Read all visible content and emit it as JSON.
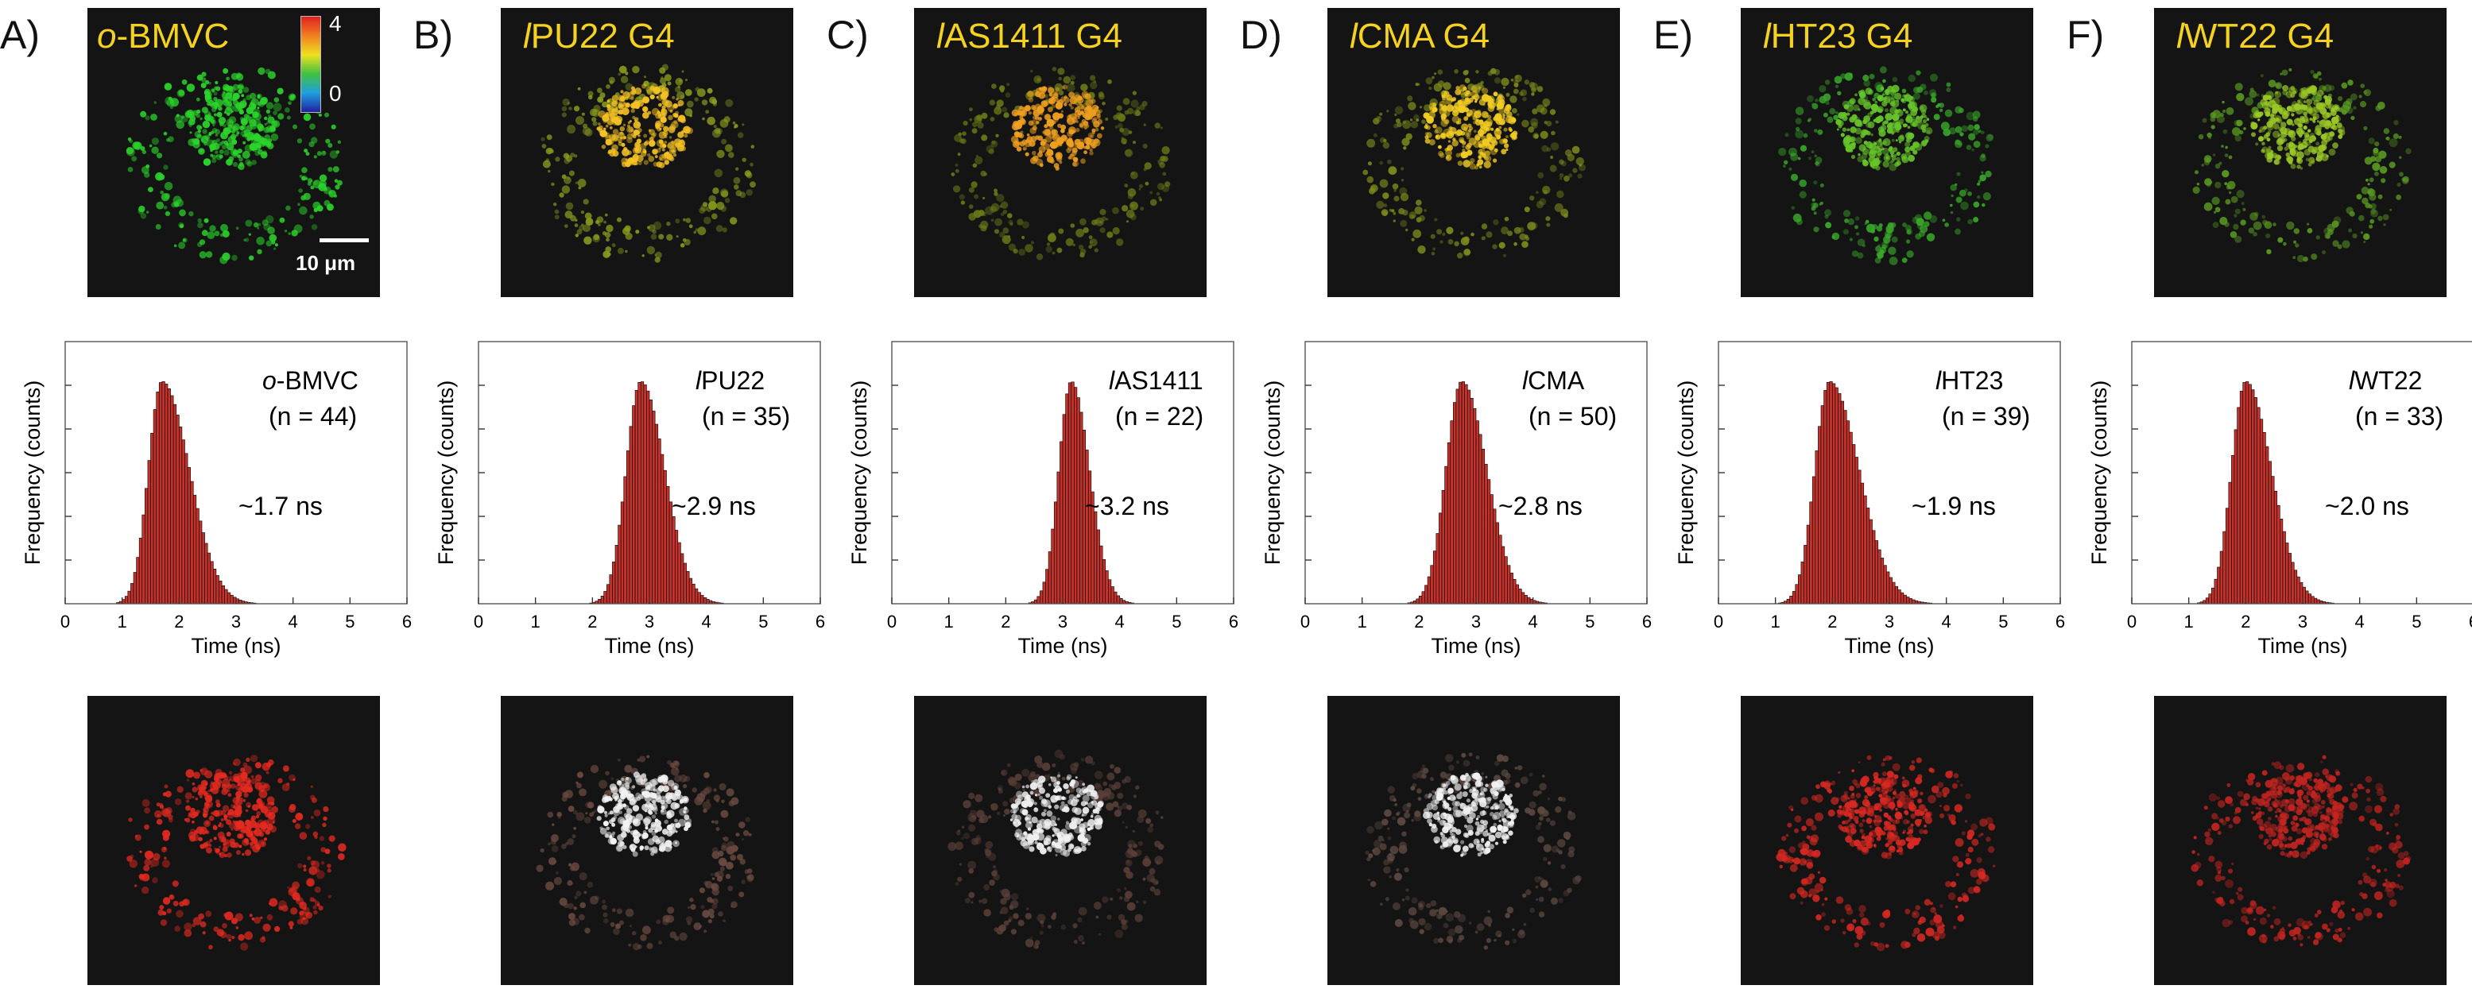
{
  "figure": {
    "colors": {
      "yellow": "#f4d21f",
      "green": "#3bc43b",
      "red": "#e23030",
      "white": "#f2f2f2",
      "bar": "#c3332c"
    },
    "panels": [
      {
        "letter": "A)",
        "title_prefix": "o",
        "title_sep": "-",
        "title_main": "BMVC",
        "top_color": "#2bd32b",
        "bottom_color": "#e52a20",
        "highlight": "#2bd32b"
      },
      {
        "letter": "B)",
        "title_prefix": "l",
        "title_sep": "",
        "title_main": "PU22 G4",
        "top_color": "#8a9b1f",
        "bottom_color": "#6a4a40",
        "highlight": "#f5c224"
      },
      {
        "letter": "C)",
        "title_prefix": "l",
        "title_sep": "",
        "title_main": "AS1411 G4",
        "top_color": "#6c7a18",
        "bottom_color": "#5a4038",
        "highlight": "#f0a020"
      },
      {
        "letter": "D)",
        "title_prefix": "l",
        "title_sep": "",
        "title_main": "CMA G4",
        "top_color": "#7d8a1c",
        "bottom_color": "#5e4a42",
        "highlight": "#f2cc22"
      },
      {
        "letter": "E)",
        "title_prefix": "l",
        "title_sep": "",
        "title_main": "HT23 G4",
        "top_color": "#3aa82a",
        "bottom_color": "#d82822",
        "highlight": "#66c42a"
      },
      {
        "letter": "F)",
        "title_prefix": "l",
        "title_sep": "",
        "title_main": "WT22 G4",
        "top_color": "#5a9a22",
        "bottom_color": "#c22420",
        "highlight": "#9ac826"
      }
    ],
    "colorbar": {
      "max": "4",
      "min": "0"
    },
    "scalebar": {
      "label": "10 μm"
    }
  },
  "chart_data": [
    {
      "type": "bar",
      "title": "o-BMVC",
      "label_prefix": "o",
      "label_sep": "-",
      "label_main": "BMVC",
      "n_text": "(n = 44)",
      "lifetime": "~1.7 ns",
      "xlabel": "Time (ns)",
      "ylabel": "Frequency (counts)",
      "xlim": [
        0,
        6
      ],
      "xticks": [
        0,
        1,
        2,
        3,
        4,
        5,
        6
      ],
      "peak": 1.7,
      "sigma_left": 0.24,
      "sigma_right": 0.48
    },
    {
      "type": "bar",
      "title": "lPU22",
      "label_prefix": "l",
      "label_sep": "",
      "label_main": "PU22",
      "n_text": "(n = 35)",
      "lifetime": "~2.9 ns",
      "xlabel": "Time (ns)",
      "ylabel": "Frequency (counts)",
      "xlim": [
        0,
        6
      ],
      "xticks": [
        0,
        1,
        2,
        3,
        4,
        5,
        6
      ],
      "peak": 2.85,
      "sigma_left": 0.26,
      "sigma_right": 0.42
    },
    {
      "type": "bar",
      "title": "lAS1411",
      "label_prefix": "l",
      "label_sep": "",
      "label_main": "AS1411",
      "n_text": "(n = 22)",
      "lifetime": "~3.2 ns",
      "xlabel": "Time (ns)",
      "ylabel": "Frequency (counts)",
      "xlim": [
        0,
        6
      ],
      "xticks": [
        0,
        1,
        2,
        3,
        4,
        5,
        6
      ],
      "peak": 3.15,
      "sigma_left": 0.22,
      "sigma_right": 0.32
    },
    {
      "type": "bar",
      "title": "lCMA",
      "label_prefix": "l",
      "label_sep": "",
      "label_main": "CMA",
      "n_text": "(n = 50)",
      "lifetime": "~2.8 ns",
      "xlabel": "Time (ns)",
      "ylabel": "Frequency (counts)",
      "xlim": [
        0,
        6
      ],
      "xticks": [
        0,
        1,
        2,
        3,
        4,
        5,
        6
      ],
      "peak": 2.75,
      "sigma_left": 0.28,
      "sigma_right": 0.44
    },
    {
      "type": "bar",
      "title": "lHT23",
      "label_prefix": "l",
      "label_sep": "",
      "label_main": "HT23",
      "n_text": "(n = 39)",
      "lifetime": "~1.9 ns",
      "xlabel": "Time (ns)",
      "ylabel": "Frequency (counts)",
      "xlim": [
        0,
        6
      ],
      "xticks": [
        0,
        1,
        2,
        3,
        4,
        5,
        6
      ],
      "peak": 1.95,
      "sigma_left": 0.26,
      "sigma_right": 0.52
    },
    {
      "type": "bar",
      "title": "lWT22",
      "label_prefix": "l",
      "label_sep": "",
      "label_main": "WT22",
      "n_text": "(n = 33)",
      "lifetime": "~2.0 ns",
      "xlabel": "Time (ns)",
      "ylabel": "Frequency (counts)",
      "xlim": [
        0,
        6
      ],
      "xticks": [
        0,
        1,
        2,
        3,
        4,
        5,
        6
      ],
      "peak": 2.0,
      "sigma_left": 0.25,
      "sigma_right": 0.45
    }
  ]
}
